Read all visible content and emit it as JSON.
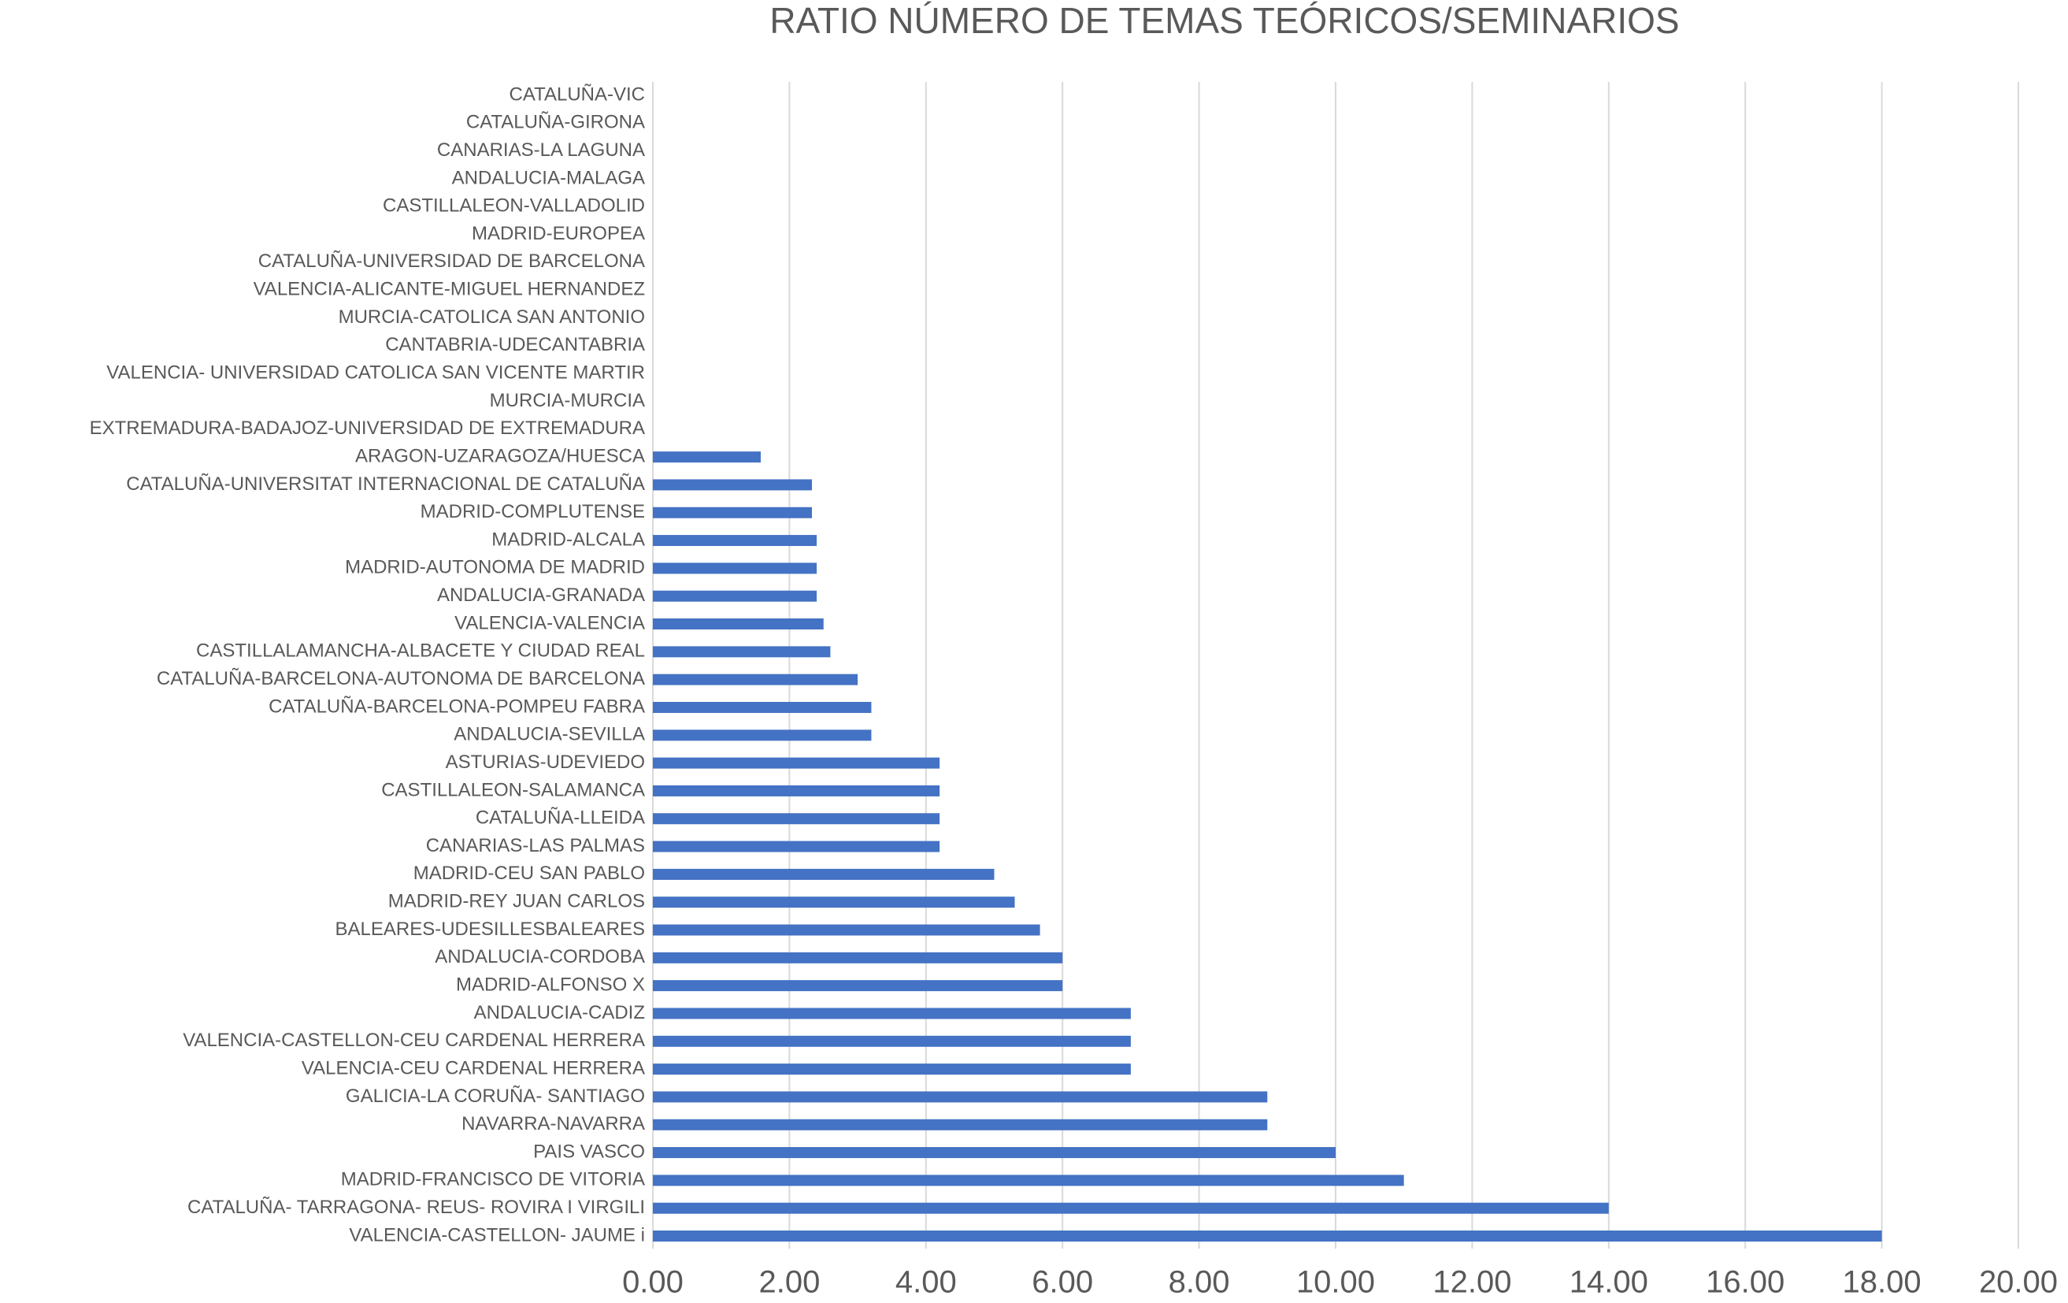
{
  "chart_data": {
    "type": "barh",
    "title": "RATIO NÚMERO DE TEMAS TEÓRICOS/SEMINARIOS",
    "categories": [
      "CATALUÑA-VIC",
      "CATALUÑA-GIRONA",
      "CANARIAS-LA LAGUNA",
      "ANDALUCIA-MALAGA",
      "CASTILLALEON-VALLADOLID",
      "MADRID-EUROPEA",
      "CATALUÑA-UNIVERSIDAD DE BARCELONA",
      "VALENCIA-ALICANTE-MIGUEL HERNANDEZ",
      "MURCIA-CATOLICA SAN ANTONIO",
      "CANTABRIA-UDECANTABRIA",
      "VALENCIA- UNIVERSIDAD CATOLICA SAN VICENTE MARTIR",
      "MURCIA-MURCIA",
      "EXTREMADURA-BADAJOZ-UNIVERSIDAD DE EXTREMADURA",
      "ARAGON-UZARAGOZA/HUESCA",
      "CATALUÑA-UNIVERSITAT INTERNACIONAL DE CATALUÑA",
      "MADRID-COMPLUTENSE",
      "MADRID-ALCALA",
      "MADRID-AUTONOMA DE MADRID",
      "ANDALUCIA-GRANADA",
      "VALENCIA-VALENCIA",
      "CASTILLALAMANCHA-ALBACETE Y CIUDAD REAL",
      "CATALUÑA-BARCELONA-AUTONOMA DE BARCELONA",
      "CATALUÑA-BARCELONA-POMPEU FABRA",
      "ANDALUCIA-SEVILLA",
      "ASTURIAS-UDEVIEDO",
      "CASTILLALEON-SALAMANCA",
      "CATALUÑA-LLEIDA",
      "CANARIAS-LAS PALMAS",
      "MADRID-CEU SAN PABLO",
      "MADRID-REY JUAN CARLOS",
      "BALEARES-UDESILLESBALEARES",
      "ANDALUCIA-CORDOBA",
      "MADRID-ALFONSO X",
      "ANDALUCIA-CADIZ",
      "VALENCIA-CASTELLON-CEU CARDENAL HERRERA",
      "VALENCIA-CEU CARDENAL HERRERA",
      "GALICIA-LA CORUÑA- SANTIAGO",
      "NAVARRA-NAVARRA",
      "PAIS VASCO",
      "MADRID-FRANCISCO DE VITORIA",
      "CATALUÑA- TARRAGONA- REUS- ROVIRA I VIRGILI",
      "VALENCIA-CASTELLON- JAUME i"
    ],
    "values": [
      0,
      0,
      0,
      0,
      0,
      0,
      0,
      0,
      0,
      0,
      0,
      0,
      0,
      1.58,
      2.33,
      2.33,
      2.4,
      2.4,
      2.4,
      2.5,
      2.6,
      3.0,
      3.2,
      3.2,
      4.2,
      4.2,
      4.2,
      4.2,
      5.0,
      5.3,
      5.67,
      6,
      6,
      7,
      7,
      7,
      9,
      9,
      10,
      11,
      14,
      18
    ],
    "color": "#4472c4",
    "xlim": [
      0,
      20
    ],
    "xticks": [
      {
        "value": 0,
        "label": "0.00"
      },
      {
        "value": 2,
        "label": "2.00"
      },
      {
        "value": 4,
        "label": "4.00"
      },
      {
        "value": 6,
        "label": "6.00"
      },
      {
        "value": 8,
        "label": "8.00"
      },
      {
        "value": 10,
        "label": "10.00"
      },
      {
        "value": 12,
        "label": "12.00"
      },
      {
        "value": 14,
        "label": "14.00"
      },
      {
        "value": 16,
        "label": "16.00"
      },
      {
        "value": 18,
        "label": "18.00"
      },
      {
        "value": 20,
        "label": "20.00"
      }
    ],
    "grid": true
  }
}
